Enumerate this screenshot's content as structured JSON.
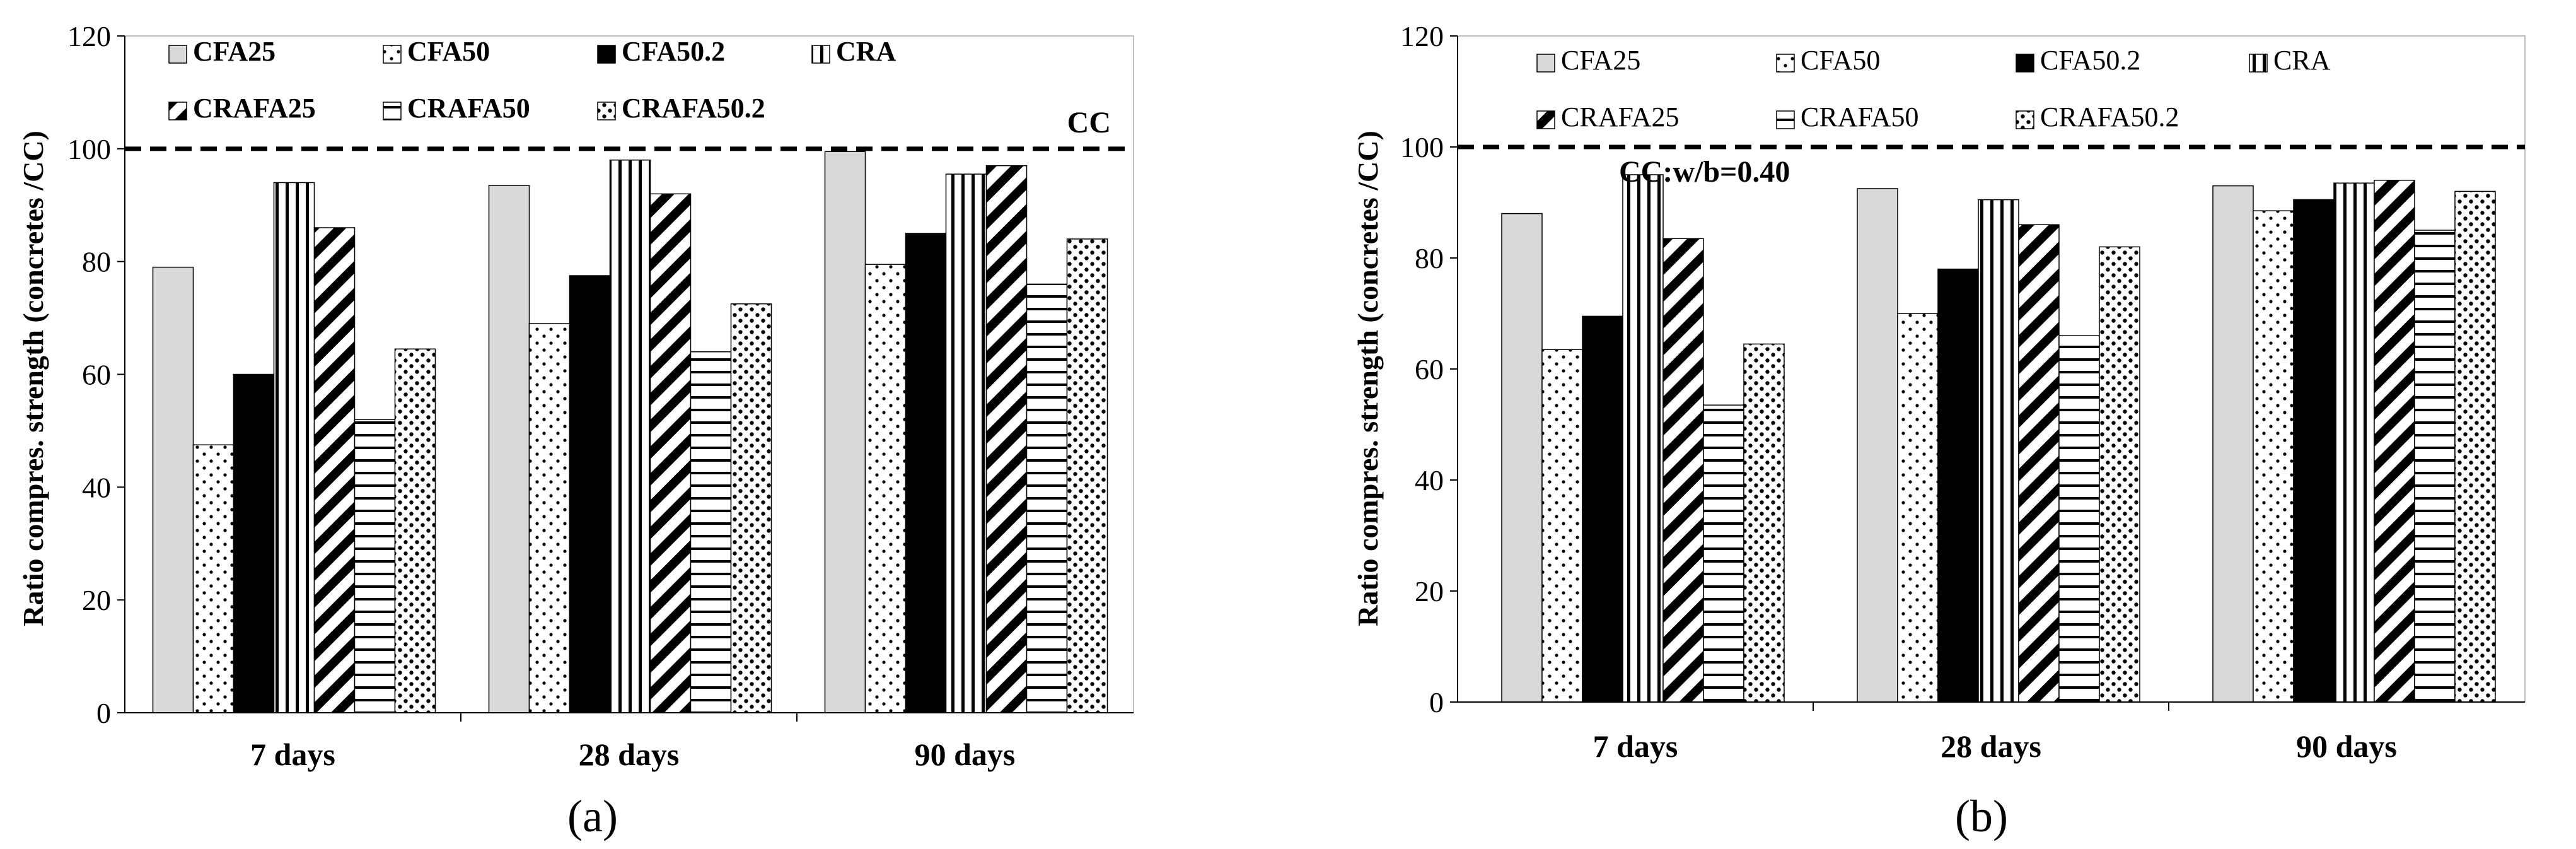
{
  "chart_data": [
    {
      "type": "bar",
      "panel_label": "(a)",
      "categories": [
        "7 days",
        "28 days",
        "90 days"
      ],
      "series": [
        {
          "name": "CFA25",
          "pattern": "gray",
          "values": [
            79,
            93.5,
            99.5
          ]
        },
        {
          "name": "CFA50",
          "pattern": "dots",
          "values": [
            47.5,
            69,
            79.5
          ]
        },
        {
          "name": "CFA50.2",
          "pattern": "solid",
          "values": [
            60,
            77.5,
            85
          ]
        },
        {
          "name": "CRA",
          "pattern": "vlines",
          "values": [
            94,
            98,
            95.5
          ]
        },
        {
          "name": "CRAFA25",
          "pattern": "diag",
          "values": [
            86,
            92,
            97
          ]
        },
        {
          "name": "CRAFA50",
          "pattern": "hlines",
          "values": [
            52,
            64,
            76
          ]
        },
        {
          "name": "CRAFA50.2",
          "pattern": "fdots",
          "values": [
            64.5,
            72.5,
            84
          ]
        }
      ],
      "ylabel": "Ratio compres. strength (concretes /CC)",
      "ylim": [
        0,
        120
      ],
      "yticks": [
        "0",
        "20",
        "40",
        "60",
        "80",
        "100",
        "120"
      ],
      "reference": {
        "value": 100,
        "label": "CC"
      },
      "legend_style": "bold",
      "legend": "top"
    },
    {
      "type": "bar",
      "panel_label": "(b)",
      "categories": [
        "7 days",
        "28 days",
        "90 days"
      ],
      "series": [
        {
          "name": "CFA25",
          "pattern": "gray",
          "values": [
            88,
            92.5,
            93
          ]
        },
        {
          "name": "CFA50",
          "pattern": "dots",
          "values": [
            63.5,
            70,
            88.5
          ]
        },
        {
          "name": "CFA50.2",
          "pattern": "solid",
          "values": [
            69.5,
            78,
            90.5
          ]
        },
        {
          "name": "CRA",
          "pattern": "vlines",
          "values": [
            95,
            90.5,
            93.5
          ]
        },
        {
          "name": "CRAFA25",
          "pattern": "diag",
          "values": [
            83.5,
            86,
            94
          ]
        },
        {
          "name": "CRAFA50",
          "pattern": "hlines",
          "values": [
            53.5,
            66,
            85
          ]
        },
        {
          "name": "CRAFA50.2",
          "pattern": "fdots",
          "values": [
            64.5,
            82,
            92
          ]
        }
      ],
      "ylabel": "Ratio compres. strength (concretes /CC)",
      "ylim": [
        0,
        120
      ],
      "yticks": [
        "0",
        "20",
        "40",
        "60",
        "80",
        "100",
        "120"
      ],
      "reference": {
        "value": 100,
        "label": "CC:w/b=0.40"
      },
      "legend_style": "regular",
      "legend": "top"
    }
  ]
}
